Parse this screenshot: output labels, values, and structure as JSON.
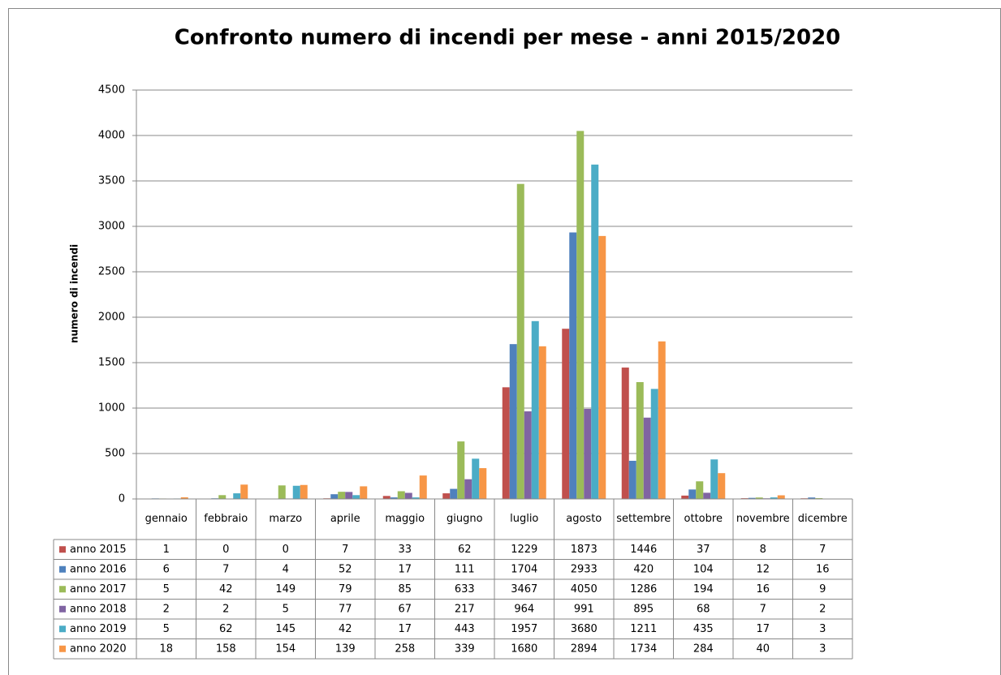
{
  "chart_data": {
    "type": "bar",
    "title": "Confronto numero di incendi per mese - anni 2015/2020",
    "y_label": "numero di incendi",
    "categories": [
      "gennaio",
      "febbraio",
      "marzo",
      "aprile",
      "maggio",
      "giugno",
      "luglio",
      "agosto",
      "settembre",
      "ottobre",
      "novembre",
      "dicembre"
    ],
    "series": [
      {
        "name": "anno 2015",
        "color": "#c0504d",
        "values": [
          1,
          0,
          0,
          7,
          33,
          62,
          1229,
          1873,
          1446,
          37,
          8,
          7
        ]
      },
      {
        "name": "anno 2016",
        "color": "#4f81bd",
        "values": [
          6,
          7,
          4,
          52,
          17,
          111,
          1704,
          2933,
          420,
          104,
          12,
          16
        ]
      },
      {
        "name": "anno 2017",
        "color": "#9bbb59",
        "values": [
          5,
          42,
          149,
          79,
          85,
          633,
          3467,
          4050,
          1286,
          194,
          16,
          9
        ]
      },
      {
        "name": "anno 2018",
        "color": "#8064a2",
        "values": [
          2,
          2,
          5,
          77,
          67,
          217,
          964,
          991,
          895,
          68,
          7,
          2
        ]
      },
      {
        "name": "anno 2019",
        "color": "#4bacc6",
        "values": [
          5,
          62,
          145,
          42,
          17,
          443,
          1957,
          3680,
          1211,
          435,
          17,
          3
        ]
      },
      {
        "name": "anno 2020",
        "color": "#f79646",
        "values": [
          18,
          158,
          154,
          139,
          258,
          339,
          1680,
          2894,
          1734,
          284,
          40,
          3
        ]
      }
    ],
    "ylim": [
      0,
      4500
    ],
    "yticks": [
      0,
      500,
      1000,
      1500,
      2000,
      2500,
      3000,
      3500,
      4000,
      4500
    ],
    "grid": true
  }
}
